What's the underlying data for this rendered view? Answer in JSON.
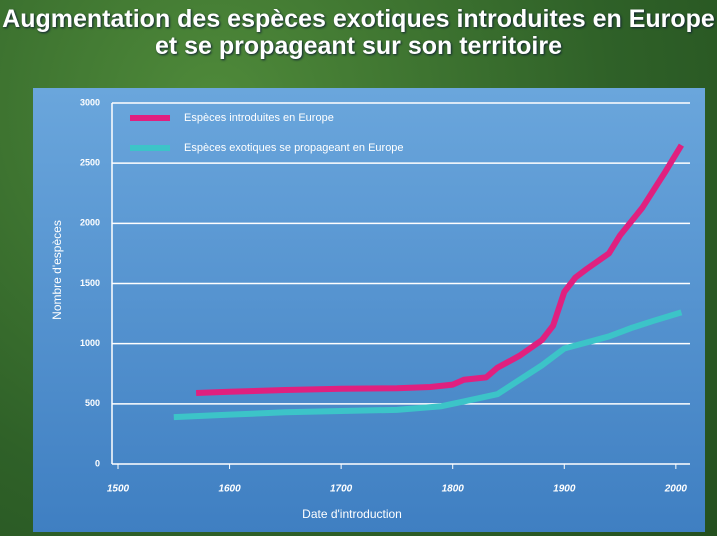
{
  "chart_data": {
    "type": "line",
    "title": "Augmentation des espèces exotiques introduites en Europe et se propageant sur son territoire",
    "xlabel": "Date d'introduction",
    "ylabel": "Nombre d'espèces",
    "series": [
      {
        "name": "Espèces introduites en Europe",
        "color": "#e0207f",
        "x": [
          1570,
          1600,
          1650,
          1700,
          1750,
          1780,
          1800,
          1810,
          1830,
          1840,
          1860,
          1880,
          1890,
          1900,
          1910,
          1920,
          1940,
          1950,
          1970,
          1990,
          2005
        ],
        "values": [
          590,
          600,
          615,
          625,
          630,
          640,
          660,
          700,
          720,
          800,
          900,
          1030,
          1150,
          1430,
          1550,
          1620,
          1750,
          1900,
          2130,
          2420,
          2650
        ]
      },
      {
        "name": "Espèces exotiques se propageant en Europe",
        "color": "#3cc4c8",
        "x": [
          1550,
          1600,
          1650,
          1700,
          1750,
          1790,
          1810,
          1840,
          1860,
          1880,
          1900,
          1920,
          1940,
          1960,
          1980,
          2005
        ],
        "values": [
          390,
          410,
          430,
          440,
          450,
          480,
          520,
          580,
          700,
          820,
          960,
          1010,
          1060,
          1130,
          1190,
          1260
        ]
      }
    ],
    "xlim": [
      1500,
      2010
    ],
    "xticks": [
      1500,
      1600,
      1700,
      1800,
      1900,
      2000
    ],
    "ylim": [
      0,
      3000
    ],
    "yticks": [
      0,
      500,
      1000,
      1500,
      2000,
      2500,
      3000
    ],
    "grid": true
  }
}
